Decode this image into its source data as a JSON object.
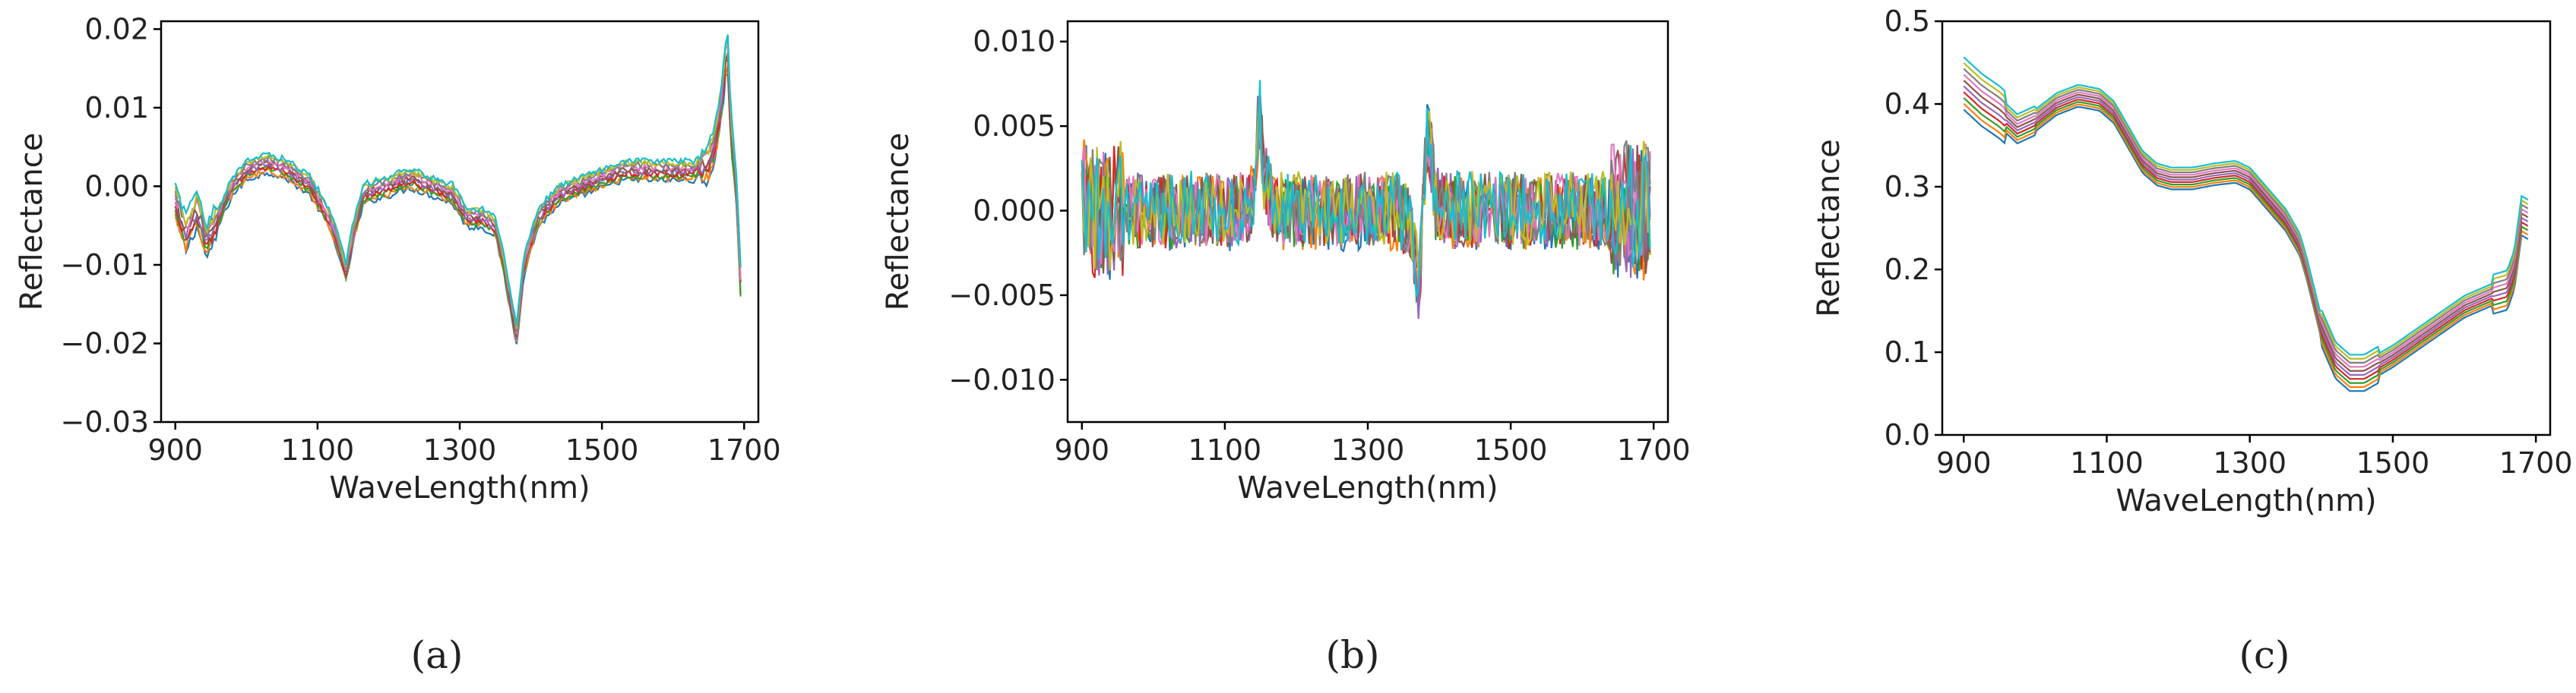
{
  "palette": [
    "#1f77b4",
    "#ff7f0e",
    "#2ca02c",
    "#d62728",
    "#9467bd",
    "#8c564b",
    "#e377c2",
    "#7f7f7f",
    "#bcbd22",
    "#17becf"
  ],
  "chart_data": [
    {
      "id": "a",
      "type": "line",
      "caption": "(a)",
      "xlabel": "WaveLength(nm)",
      "ylabel": "Reflectance",
      "xlim": [
        880,
        1720
      ],
      "ylim": [
        -0.03,
        0.021
      ],
      "xticks": [
        900,
        1100,
        1300,
        1500,
        1700
      ],
      "xtick_labels": [
        "900",
        "1100",
        "1300",
        "1500",
        "1700"
      ],
      "yticks": [
        -0.03,
        -0.02,
        -0.01,
        0.0,
        0.01,
        0.02
      ],
      "ytick_labels": [
        "−0.03",
        "−0.02",
        "−0.01",
        "0.00",
        "0.01",
        "0.02"
      ],
      "series_count": 10,
      "spread": 0.0012,
      "noise": 0.0004,
      "representative": {
        "x": [
          900,
          915,
          930,
          945,
          960,
          980,
          1000,
          1030,
          1060,
          1090,
          1110,
          1125,
          1140,
          1150,
          1165,
          1180,
          1200,
          1230,
          1260,
          1290,
          1310,
          1330,
          1350,
          1360,
          1370,
          1380,
          1390,
          1410,
          1440,
          1470,
          1500,
          1530,
          1560,
          1600,
          1630,
          1650,
          1660,
          1670,
          1676,
          1682,
          1688,
          1695
        ],
        "y": [
          -0.002,
          -0.006,
          -0.003,
          -0.007,
          -0.004,
          0.0,
          0.002,
          0.003,
          0.002,
          0.0,
          -0.003,
          -0.006,
          -0.011,
          -0.006,
          -0.001,
          -0.0005,
          0.0,
          0.001,
          0.0,
          -0.001,
          -0.004,
          -0.004,
          -0.005,
          -0.009,
          -0.014,
          -0.019,
          -0.01,
          -0.004,
          -0.001,
          0.0,
          0.001,
          0.002,
          0.002,
          0.002,
          0.002,
          0.003,
          0.006,
          0.012,
          0.019,
          0.006,
          0.002,
          -0.012
        ]
      }
    },
    {
      "id": "b",
      "type": "line",
      "caption": "(b)",
      "xlabel": "WaveLength(nm)",
      "ylabel": "Reflectance",
      "xlim": [
        880,
        1720
      ],
      "ylim": [
        -0.0125,
        0.0112
      ],
      "xticks": [
        900,
        1100,
        1300,
        1500,
        1700
      ],
      "xtick_labels": [
        "900",
        "1100",
        "1300",
        "1500",
        "1700"
      ],
      "yticks": [
        -0.01,
        -0.005,
        0.0,
        0.005,
        0.01
      ],
      "ytick_labels": [
        "−0.010",
        "−0.005",
        "0.000",
        "0.005",
        "0.010"
      ],
      "series_count": 10,
      "spread": 0.0002,
      "noise": 0.0022,
      "representative": {
        "x": [
          900,
          920,
          940,
          960,
          990,
          1020,
          1060,
          1100,
          1130,
          1140,
          1148,
          1155,
          1170,
          1200,
          1250,
          1300,
          1340,
          1360,
          1372,
          1378,
          1384,
          1395,
          1420,
          1480,
          1550,
          1620,
          1660,
          1675,
          1685,
          1695
        ],
        "y": [
          0.001,
          0.0,
          0.0,
          0.0,
          0.0,
          0.0,
          0.0,
          0.0,
          0.0,
          0.001,
          0.006,
          0.002,
          0.0,
          0.0,
          0.0,
          0.0,
          0.0,
          -0.001,
          -0.005,
          0.001,
          0.005,
          0.0005,
          0.0,
          0.0,
          0.0,
          0.0,
          0.0,
          0.0,
          0.0,
          0.0
        ]
      }
    },
    {
      "id": "c",
      "type": "line",
      "caption": "(c)",
      "xlabel": "WaveLength(nm)",
      "ylabel": "Reflectance",
      "xlim": [
        870,
        1720
      ],
      "ylim": [
        0.0,
        0.5
      ],
      "xticks": [
        900,
        1100,
        1300,
        1500,
        1700
      ],
      "xtick_labels": [
        "900",
        "1100",
        "1300",
        "1500",
        "1700"
      ],
      "yticks": [
        0.0,
        0.1,
        0.2,
        0.3,
        0.4,
        0.5
      ],
      "ytick_labels": [
        "0.0",
        "0.1",
        "0.2",
        "0.3",
        "0.4",
        "0.5"
      ],
      "series_count": 10,
      "spread": 0.022,
      "noise": 0.0,
      "representative": {
        "x": [
          900,
          925,
          950,
          975,
          1000,
          1030,
          1060,
          1090,
          1110,
          1130,
          1150,
          1170,
          1190,
          1220,
          1250,
          1280,
          1300,
          1320,
          1350,
          1370,
          1380,
          1400,
          1420,
          1440,
          1460,
          1500,
          1550,
          1600,
          1640,
          1660,
          1670,
          1680,
          1690
        ],
        "y": [
          0.425,
          0.405,
          0.39,
          0.37,
          0.38,
          0.4,
          0.41,
          0.405,
          0.39,
          0.36,
          0.33,
          0.315,
          0.31,
          0.31,
          0.315,
          0.318,
          0.31,
          0.29,
          0.26,
          0.23,
          0.2,
          0.13,
          0.09,
          0.075,
          0.075,
          0.095,
          0.125,
          0.155,
          0.17,
          0.175,
          0.2,
          0.265,
          0.26
        ]
      }
    }
  ]
}
